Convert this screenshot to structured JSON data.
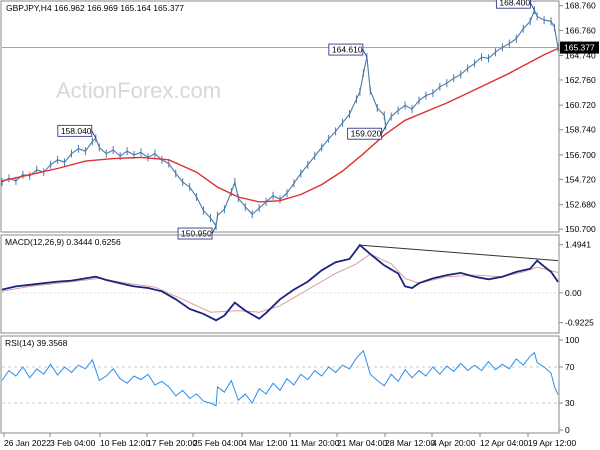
{
  "chart_data": [
    {
      "type": "candlestick",
      "title": "GBPJPY,H4  166.962 166.969 165.164 165.377",
      "watermark": "ActionForex.com",
      "ylim": [
        150.709,
        168.9
      ],
      "y_ticks": [
        150.7,
        152.68,
        154.72,
        156.7,
        158.74,
        160.72,
        162.76,
        164.74,
        166.76,
        168.76
      ],
      "current_price": "165.377",
      "callouts": [
        {
          "label": "158.040",
          "x": 13.5,
          "y": 158.04,
          "align": "left"
        },
        {
          "label": "150.950",
          "x": 30.8,
          "y": 150.95,
          "align": "right"
        },
        {
          "label": "164.610",
          "x": 52.5,
          "y": 164.61,
          "align": "right"
        },
        {
          "label": "159.020",
          "x": 55.2,
          "y": 159.02,
          "align": "left"
        },
        {
          "label": "168.400",
          "x": 76.6,
          "y": 168.4,
          "align": "right"
        }
      ],
      "price_series": [
        [
          0,
          154.5
        ],
        [
          1,
          154.8
        ],
        [
          2,
          154.6
        ],
        [
          3,
          155.1
        ],
        [
          4,
          155.0
        ],
        [
          5,
          155.5
        ],
        [
          6,
          155.3
        ],
        [
          7,
          155.9
        ],
        [
          8,
          156.3
        ],
        [
          9,
          156.1
        ],
        [
          10,
          156.8
        ],
        [
          11,
          157.2
        ],
        [
          12,
          157.0
        ],
        [
          13,
          157.8
        ],
        [
          13.5,
          158.04
        ],
        [
          14,
          157.3
        ],
        [
          15,
          156.8
        ],
        [
          16,
          157.1
        ],
        [
          17,
          156.6
        ],
        [
          18,
          157.0
        ],
        [
          19,
          156.7
        ],
        [
          20,
          156.9
        ],
        [
          21,
          156.5
        ],
        [
          22,
          156.8
        ],
        [
          23,
          156.3
        ],
        [
          24,
          156.0
        ],
        [
          25,
          155.2
        ],
        [
          26,
          154.5
        ],
        [
          27,
          154.1
        ],
        [
          28,
          153.3
        ],
        [
          29,
          152.2
        ],
        [
          30,
          151.6
        ],
        [
          30.8,
          150.95
        ],
        [
          31,
          151.8
        ],
        [
          32,
          152.3
        ],
        [
          33,
          153.7
        ],
        [
          33.5,
          154.5
        ],
        [
          34,
          153.2
        ],
        [
          35,
          152.5
        ],
        [
          36,
          151.9
        ],
        [
          37,
          152.4
        ],
        [
          38,
          152.9
        ],
        [
          39,
          153.4
        ],
        [
          40,
          153.1
        ],
        [
          41,
          153.6
        ],
        [
          42,
          154.4
        ],
        [
          43,
          155.2
        ],
        [
          44,
          155.9
        ],
        [
          45,
          156.6
        ],
        [
          46,
          157.3
        ],
        [
          47,
          158.0
        ],
        [
          48,
          158.6
        ],
        [
          49,
          159.3
        ],
        [
          50,
          160.0
        ],
        [
          51,
          161.2
        ],
        [
          51.5,
          161.8
        ],
        [
          52,
          163.3
        ],
        [
          52.5,
          164.61
        ],
        [
          53,
          161.9
        ],
        [
          54,
          160.5
        ],
        [
          55,
          159.9
        ],
        [
          55.2,
          159.02
        ],
        [
          56,
          159.8
        ],
        [
          57,
          160.3
        ],
        [
          58,
          160.7
        ],
        [
          59,
          160.4
        ],
        [
          60,
          161.1
        ],
        [
          61,
          161.5
        ],
        [
          62,
          161.7
        ],
        [
          63,
          162.2
        ],
        [
          64,
          162.5
        ],
        [
          65,
          162.9
        ],
        [
          66,
          163.2
        ],
        [
          67,
          163.7
        ],
        [
          68,
          164.1
        ],
        [
          69,
          164.6
        ],
        [
          70,
          164.5
        ],
        [
          71,
          165.0
        ],
        [
          72,
          165.4
        ],
        [
          73,
          165.7
        ],
        [
          74,
          166.1
        ],
        [
          75,
          166.9
        ],
        [
          76,
          167.5
        ],
        [
          76.6,
          168.4
        ],
        [
          77,
          167.9
        ],
        [
          78,
          167.6
        ],
        [
          79,
          167.5
        ],
        [
          79.5,
          167.0
        ],
        [
          80,
          165.377
        ]
      ],
      "ma_series": [
        [
          0,
          154.6
        ],
        [
          4,
          155.1
        ],
        [
          8,
          155.6
        ],
        [
          12,
          156.2
        ],
        [
          16,
          156.4
        ],
        [
          20,
          156.5
        ],
        [
          24,
          156.3
        ],
        [
          28,
          155.3
        ],
        [
          31,
          154.1
        ],
        [
          34,
          153.3
        ],
        [
          37,
          152.9
        ],
        [
          40,
          153.0
        ],
        [
          43,
          153.5
        ],
        [
          46,
          154.3
        ],
        [
          49,
          155.4
        ],
        [
          52,
          156.8
        ],
        [
          55,
          158.3
        ],
        [
          58,
          159.5
        ],
        [
          61,
          160.2
        ],
        [
          64,
          160.9
        ],
        [
          67,
          161.7
        ],
        [
          70,
          162.5
        ],
        [
          73,
          163.3
        ],
        [
          76,
          164.2
        ],
        [
          78,
          164.8
        ],
        [
          80,
          165.3
        ]
      ]
    },
    {
      "type": "line",
      "title": "MACD(12,26,9) 0.3444 0.6256",
      "ylim": [
        -1.15,
        1.7
      ],
      "y_ticks": [
        1.4941,
        0.0,
        -0.9225
      ],
      "y_tick_labels": [
        "1.4941",
        "0.00",
        "-0.9225"
      ],
      "trendline": [
        [
          51.5,
          1.48
        ],
        [
          80,
          1.0
        ]
      ],
      "macd_series": [
        [
          0,
          0.1
        ],
        [
          2,
          0.2
        ],
        [
          4,
          0.25
        ],
        [
          6,
          0.3
        ],
        [
          8,
          0.35
        ],
        [
          10,
          0.38
        ],
        [
          12,
          0.45
        ],
        [
          13.5,
          0.5
        ],
        [
          15,
          0.4
        ],
        [
          17,
          0.3
        ],
        [
          19,
          0.2
        ],
        [
          21,
          0.15
        ],
        [
          23,
          0.05
        ],
        [
          25,
          -0.2
        ],
        [
          27,
          -0.5
        ],
        [
          29,
          -0.65
        ],
        [
          30.8,
          -0.85
        ],
        [
          32,
          -0.7
        ],
        [
          33.5,
          -0.3
        ],
        [
          35,
          -0.55
        ],
        [
          37,
          -0.8
        ],
        [
          38,
          -0.62
        ],
        [
          40,
          -0.2
        ],
        [
          42,
          0.1
        ],
        [
          44,
          0.35
        ],
        [
          46,
          0.7
        ],
        [
          48,
          0.95
        ],
        [
          50,
          1.05
        ],
        [
          51.5,
          1.48
        ],
        [
          53,
          1.2
        ],
        [
          55,
          0.85
        ],
        [
          57,
          0.6
        ],
        [
          58,
          0.2
        ],
        [
          59,
          0.15
        ],
        [
          60,
          0.3
        ],
        [
          62,
          0.45
        ],
        [
          64,
          0.55
        ],
        [
          66,
          0.62
        ],
        [
          68,
          0.5
        ],
        [
          70,
          0.42
        ],
        [
          72,
          0.5
        ],
        [
          74,
          0.65
        ],
        [
          76,
          0.75
        ],
        [
          77,
          1.0
        ],
        [
          78,
          0.82
        ],
        [
          79,
          0.65
        ],
        [
          80,
          0.34
        ]
      ],
      "signal_series": [
        [
          0,
          0.05
        ],
        [
          4,
          0.2
        ],
        [
          8,
          0.3
        ],
        [
          12,
          0.4
        ],
        [
          14,
          0.45
        ],
        [
          18,
          0.3
        ],
        [
          22,
          0.18
        ],
        [
          26,
          -0.2
        ],
        [
          30,
          -0.6
        ],
        [
          34,
          -0.55
        ],
        [
          37,
          -0.6
        ],
        [
          40,
          -0.4
        ],
        [
          44,
          0.1
        ],
        [
          48,
          0.6
        ],
        [
          51,
          0.9
        ],
        [
          53,
          1.2
        ],
        [
          56,
          0.9
        ],
        [
          58,
          0.45
        ],
        [
          60,
          0.3
        ],
        [
          64,
          0.5
        ],
        [
          68,
          0.55
        ],
        [
          72,
          0.5
        ],
        [
          75,
          0.65
        ],
        [
          77,
          0.8
        ],
        [
          80,
          0.63
        ]
      ]
    },
    {
      "type": "line",
      "title": "RSI(14) 39.3568",
      "ylim": [
        0,
        100
      ],
      "y_ticks": [
        100,
        70,
        30,
        0
      ],
      "y_tick_labels": [
        "100",
        "70",
        "30",
        "0"
      ],
      "dashed_levels": [
        70,
        30
      ],
      "rsi_series": [
        [
          0,
          55
        ],
        [
          1,
          66
        ],
        [
          2,
          60
        ],
        [
          3,
          70
        ],
        [
          4,
          58
        ],
        [
          5,
          68
        ],
        [
          6,
          62
        ],
        [
          7,
          73
        ],
        [
          8,
          61
        ],
        [
          9,
          70
        ],
        [
          10,
          64
        ],
        [
          11,
          72
        ],
        [
          12,
          68
        ],
        [
          13,
          78
        ],
        [
          14,
          55
        ],
        [
          15,
          60
        ],
        [
          16,
          68
        ],
        [
          17,
          57
        ],
        [
          18,
          52
        ],
        [
          19,
          60
        ],
        [
          20,
          56
        ],
        [
          21,
          62
        ],
        [
          22,
          50
        ],
        [
          23,
          54
        ],
        [
          24,
          48
        ],
        [
          25,
          38
        ],
        [
          26,
          44
        ],
        [
          27,
          35
        ],
        [
          28,
          40
        ],
        [
          29,
          32
        ],
        [
          30,
          30
        ],
        [
          30.8,
          27
        ],
        [
          31,
          48
        ],
        [
          32,
          42
        ],
        [
          33,
          55
        ],
        [
          34,
          33
        ],
        [
          35,
          40
        ],
        [
          36,
          30
        ],
        [
          37,
          46
        ],
        [
          38,
          40
        ],
        [
          39,
          52
        ],
        [
          40,
          44
        ],
        [
          41,
          57
        ],
        [
          42,
          50
        ],
        [
          43,
          62
        ],
        [
          44,
          56
        ],
        [
          45,
          66
        ],
        [
          46,
          60
        ],
        [
          47,
          70
        ],
        [
          48,
          64
        ],
        [
          49,
          72
        ],
        [
          50,
          68
        ],
        [
          51,
          80
        ],
        [
          51.5,
          84
        ],
        [
          52,
          88
        ],
        [
          53,
          62
        ],
        [
          54,
          55
        ],
        [
          55,
          49
        ],
        [
          56,
          62
        ],
        [
          57,
          54
        ],
        [
          58,
          67
        ],
        [
          59,
          58
        ],
        [
          60,
          66
        ],
        [
          61,
          60
        ],
        [
          62,
          70
        ],
        [
          63,
          62
        ],
        [
          64,
          71
        ],
        [
          65,
          65
        ],
        [
          66,
          74
        ],
        [
          67,
          66
        ],
        [
          68,
          72
        ],
        [
          69,
          66
        ],
        [
          70,
          76
        ],
        [
          71,
          67
        ],
        [
          72,
          73
        ],
        [
          73,
          68
        ],
        [
          74,
          79
        ],
        [
          75,
          72
        ],
        [
          76,
          82
        ],
        [
          76.6,
          86
        ],
        [
          77,
          75
        ],
        [
          78,
          70
        ],
        [
          79,
          63
        ],
        [
          79.5,
          48
        ],
        [
          80,
          39.36
        ]
      ]
    }
  ],
  "x_axis": {
    "range": [
      0,
      80
    ],
    "labels": [
      {
        "x": 1,
        "text": "26 Jan 2022"
      },
      {
        "x": 9.5,
        "text": "3 Feb 04:00"
      },
      {
        "x": 17.5,
        "text": "10 Feb 12:00"
      },
      {
        "x": 25.5,
        "text": "17 Feb 20:00"
      },
      {
        "x": 33.5,
        "text": "25 Feb 04:00"
      },
      {
        "x": 41.5,
        "text": "4 Mar 12:00"
      },
      {
        "x": 49.5,
        "text": "11 Mar 20:00"
      },
      {
        "x": 57.5,
        "text": "21 Mar 04:00"
      },
      {
        "x": 65.5,
        "text": "28 Mar 12:00"
      },
      {
        "x": 73,
        "text": "4 Apr 20:00"
      },
      {
        "x": 80.5,
        "text": "12 Apr 04:00"
      },
      {
        "x": 88,
        "text": "19 Apr 12:00"
      }
    ]
  },
  "colors": {
    "price": "#4a7aa8",
    "ma": "#e03030",
    "macd": "#1a237e",
    "signal": "#d9a0a0",
    "rsi": "#2a8ef0",
    "trend": "#333333",
    "grid": "#d8d8d8",
    "frame": "#888888"
  }
}
